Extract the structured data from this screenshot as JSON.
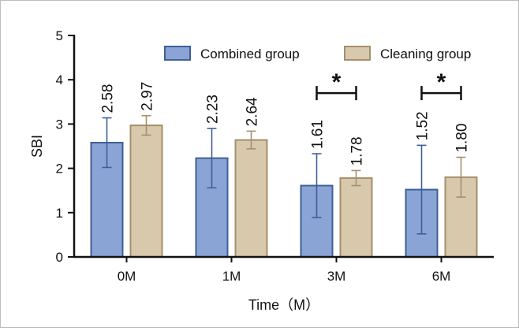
{
  "chart_data": {
    "type": "bar",
    "title": "",
    "xlabel": "Time（M）",
    "ylabel": "SBI",
    "ylim": [
      0,
      5
    ],
    "yticks": [
      "0",
      "1",
      "2",
      "3",
      "4",
      "5"
    ],
    "categories": [
      "0M",
      "1M",
      "3M",
      "6M"
    ],
    "series": [
      {
        "name": "Combined group",
        "values": [
          2.58,
          2.23,
          1.61,
          1.52
        ],
        "labels": [
          "2.58",
          "2.23",
          "1.61",
          "1.52"
        ],
        "errors": [
          0.56,
          0.67,
          0.72,
          1.0
        ],
        "fill": "#8aa4d6",
        "stroke": "#3f5f96"
      },
      {
        "name": "Cleaning group",
        "values": [
          2.97,
          2.64,
          1.78,
          1.8
        ],
        "labels": [
          "2.97",
          "2.64",
          "1.78",
          "1.80"
        ],
        "errors": [
          0.22,
          0.2,
          0.17,
          0.45
        ],
        "fill": "#d8c9ad",
        "stroke": "#a48f6c"
      }
    ],
    "significance": [
      {
        "category": "3M",
        "label": "*"
      },
      {
        "category": "6M",
        "label": "*"
      }
    ],
    "legend": "top",
    "grid": false
  }
}
